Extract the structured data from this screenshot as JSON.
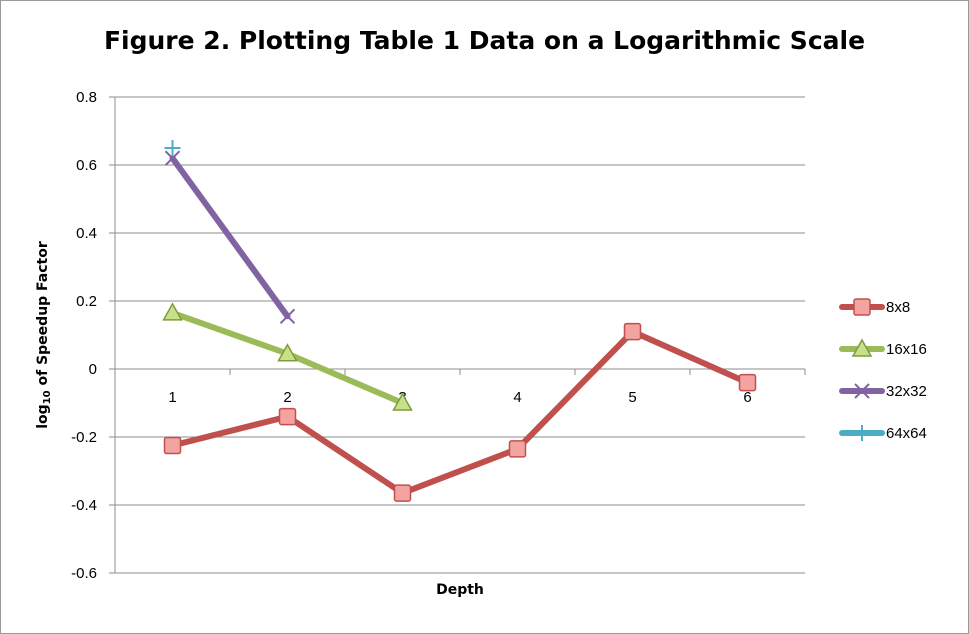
{
  "chart_data": {
    "type": "line",
    "title": "Figure 2. Plotting Table 1 Data on a Logarithmic Scale",
    "xlabel": "Depth",
    "ylabel_prefix": "log",
    "ylabel_sub": "10",
    "ylabel_suffix": " of Speedup Factor",
    "x_categories": [
      1,
      2,
      3,
      4,
      5,
      6
    ],
    "x_tick_labels": [
      "1",
      "2",
      "3",
      "4",
      "5",
      "6"
    ],
    "ylim": [
      -0.6,
      0.8
    ],
    "y_ticks": [
      0.8,
      0.6,
      0.4,
      0.2,
      0,
      -0.2,
      -0.4,
      -0.6
    ],
    "y_tick_labels": [
      "0.8",
      "0.6",
      "0.4",
      "0.2",
      "0",
      "-0.2",
      "-0.4",
      "-0.6"
    ],
    "grid": true,
    "legend_position": "right",
    "series": [
      {
        "name": "8x8",
        "color": "#c0504d",
        "marker": "square",
        "x": [
          1,
          2,
          3,
          4,
          5,
          6
        ],
        "y": [
          -0.225,
          -0.14,
          -0.365,
          -0.235,
          0.11,
          -0.04
        ]
      },
      {
        "name": "16x16",
        "color": "#9bbb59",
        "marker": "triangle",
        "x": [
          1,
          2,
          3
        ],
        "y": [
          0.165,
          0.045,
          -0.1
        ]
      },
      {
        "name": "32x32",
        "color": "#8064a2",
        "marker": "x",
        "x": [
          1,
          2
        ],
        "y": [
          0.62,
          0.155
        ]
      },
      {
        "name": "64x64",
        "color": "#4bacc6",
        "marker": "plus",
        "x": [
          1
        ],
        "y": [
          0.65
        ]
      }
    ]
  }
}
